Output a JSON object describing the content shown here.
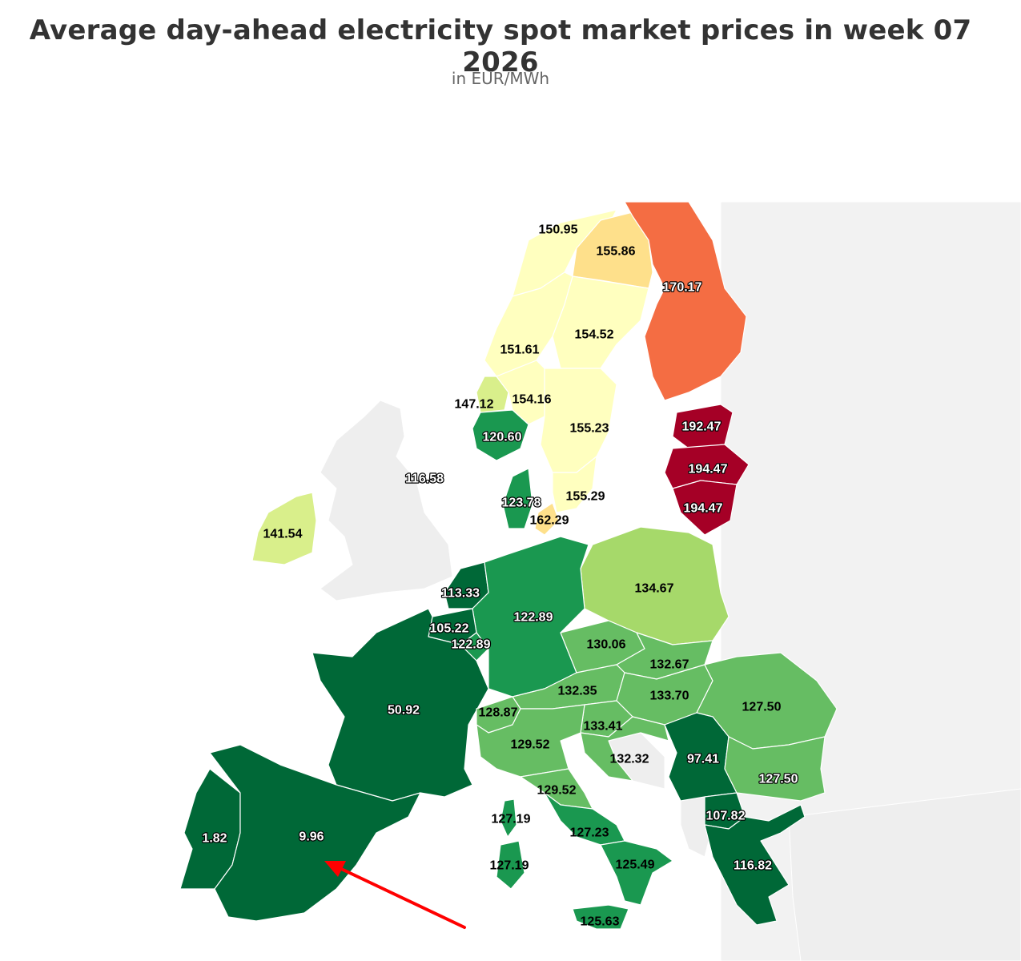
{
  "title": "Average day-ahead electricity spot market prices in week 07 2026",
  "subtitle": "in EUR/MWh",
  "unit": "EUR/MWh",
  "week": "week 07 2026",
  "colors": {
    "very_low": "#006837",
    "low": "#1a9850",
    "mid_low": "#66bd63",
    "mid": "#a6d96a",
    "mid_high": "#d9ef8b",
    "neutral": "#ffffbf",
    "high": "#fee08b",
    "higher": "#fdae61",
    "very_high": "#f46d43",
    "extreme": "#a50026"
  },
  "regions": [
    {
      "id": "NO4",
      "value": "150.95"
    },
    {
      "id": "SE1",
      "value": "155.86"
    },
    {
      "id": "FI",
      "value": "170.17"
    },
    {
      "id": "SE2",
      "value": "154.52"
    },
    {
      "id": "NO3",
      "value": "151.61"
    },
    {
      "id": "NO5",
      "value": "147.12"
    },
    {
      "id": "NO1",
      "value": "154.16"
    },
    {
      "id": "NO2",
      "value": "120.60"
    },
    {
      "id": "SE3",
      "value": "155.23"
    },
    {
      "id": "EE",
      "value": "192.47"
    },
    {
      "id": "LV",
      "value": "194.47"
    },
    {
      "id": "LT",
      "value": "194.47"
    },
    {
      "id": "GB",
      "value": "116.58"
    },
    {
      "id": "DK1",
      "value": "123.78"
    },
    {
      "id": "SE4",
      "value": "155.29"
    },
    {
      "id": "DK2",
      "value": "162.29"
    },
    {
      "id": "IE",
      "value": "141.54"
    },
    {
      "id": "PL",
      "value": "134.67"
    },
    {
      "id": "NL",
      "value": "113.33"
    },
    {
      "id": "DE",
      "value": "122.89"
    },
    {
      "id": "BE",
      "value": "105.22"
    },
    {
      "id": "LU",
      "value": "122.89"
    },
    {
      "id": "CZ",
      "value": "130.06"
    },
    {
      "id": "SK",
      "value": "132.67"
    },
    {
      "id": "FR",
      "value": "50.92"
    },
    {
      "id": "AT",
      "value": "132.35"
    },
    {
      "id": "HU",
      "value": "133.70"
    },
    {
      "id": "RO",
      "value": "127.50"
    },
    {
      "id": "CH",
      "value": "128.87"
    },
    {
      "id": "SI",
      "value": "133.41"
    },
    {
      "id": "IT-N",
      "value": "129.52"
    },
    {
      "id": "HR",
      "value": "132.32"
    },
    {
      "id": "RS",
      "value": "97.41"
    },
    {
      "id": "BG",
      "value": "127.50"
    },
    {
      "id": "IT-CN",
      "value": "129.52"
    },
    {
      "id": "MK",
      "value": "107.82"
    },
    {
      "id": "FR-COR",
      "value": "127.19"
    },
    {
      "id": "IT-SAR",
      "value": "127.19"
    },
    {
      "id": "IT-CS",
      "value": "127.23"
    },
    {
      "id": "PT",
      "value": "1.82"
    },
    {
      "id": "ES",
      "value": "9.96"
    },
    {
      "id": "IT-S",
      "value": "125.49"
    },
    {
      "id": "GR",
      "value": "116.82"
    },
    {
      "id": "IT-SIC",
      "value": "125.63"
    }
  ]
}
